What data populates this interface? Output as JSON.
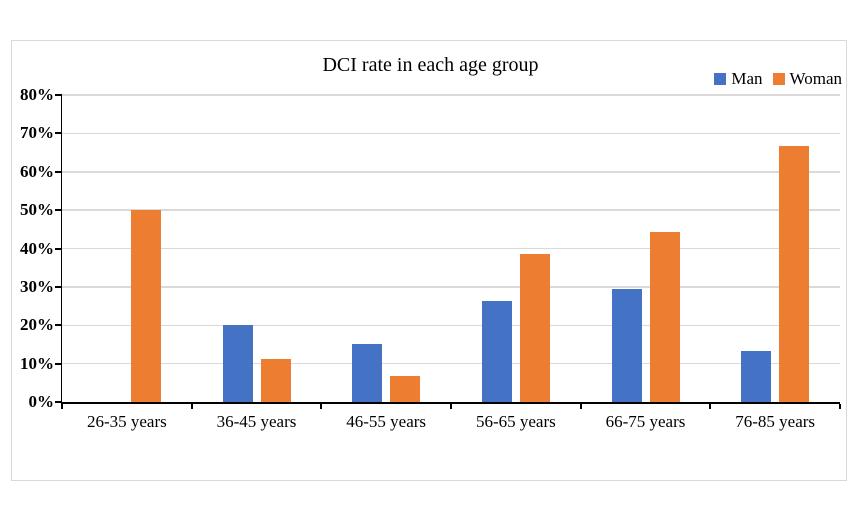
{
  "chart_data": {
    "type": "bar",
    "title": "DCI rate in each age group",
    "categories": [
      "26-35 years",
      "36-45 years",
      "46-55 years",
      "56-65 years",
      "66-75 years",
      "76-85 years"
    ],
    "series": [
      {
        "name": "Man",
        "color": "#4472C4",
        "values": [
          0,
          20,
          15.2,
          26.3,
          29.4,
          13.2
        ]
      },
      {
        "name": "Woman",
        "color": "#ED7D31",
        "values": [
          50,
          11.1,
          6.7,
          38.5,
          44.4,
          66.7
        ]
      }
    ],
    "ylim": [
      0,
      80
    ],
    "ytick_step": 10,
    "ytick_labels": [
      "0%",
      "10%",
      "20%",
      "30%",
      "40%",
      "50%",
      "60%",
      "70%",
      "80%"
    ],
    "grid": true,
    "grid_color": "#d9d9d9",
    "axis_color": "#000000",
    "frame_border_color": "#d9d9d9",
    "legend_position": "top-right"
  }
}
